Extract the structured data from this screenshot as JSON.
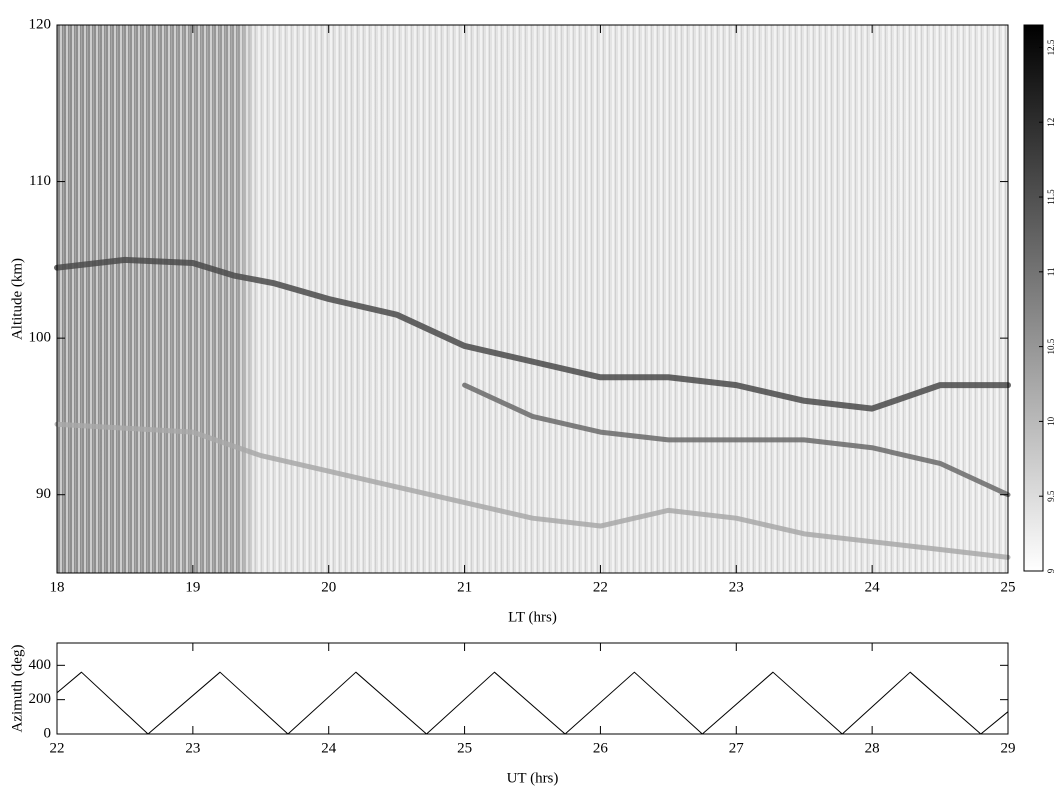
{
  "chart_data": [
    {
      "type": "line",
      "xlabel": "LT (hrs)",
      "ylabel": "Altitude (km)",
      "xlim": [
        18,
        25
      ],
      "ylim": [
        85,
        120
      ],
      "xticks": [
        18,
        19,
        20,
        21,
        22,
        23,
        24,
        25
      ],
      "yticks": [
        90,
        100,
        110,
        120
      ],
      "series": [
        {
          "color": "#4a4a4a",
          "x": [
            18,
            18.5,
            19,
            19.3,
            19.6,
            20,
            20.5,
            21,
            21.5,
            22,
            22.5,
            23,
            23.5,
            24,
            24.5,
            25
          ],
          "values": [
            104.5,
            105,
            104.8,
            104,
            103.5,
            102.5,
            101.5,
            99.5,
            98.5,
            97.5,
            97.5,
            97,
            96,
            95.5,
            97,
            97
          ]
        },
        {
          "color": "#6a6a6a",
          "x": [
            21,
            21.5,
            22,
            22.5,
            23,
            23.5,
            24,
            24.5,
            25
          ],
          "values": [
            97,
            95,
            94,
            93.5,
            93.5,
            93.5,
            93,
            92,
            90
          ]
        },
        {
          "color": "#a8a8a8",
          "x": [
            18,
            19,
            19.5,
            20,
            20.5,
            21,
            21.5,
            22,
            22.5,
            23,
            23.5,
            24,
            24.5,
            25
          ],
          "values": [
            94.5,
            94,
            92.5,
            91.5,
            90.5,
            89.5,
            88.5,
            88,
            89,
            88.5,
            87.5,
            87,
            86.5,
            86
          ]
        }
      ],
      "colorbar": {
        "lim": [
          9,
          12.65
        ],
        "ticks": [
          9,
          9.5,
          10,
          10.5,
          11,
          11.5,
          12,
          12.5
        ]
      }
    },
    {
      "type": "line",
      "xlabel": "UT (hrs)",
      "ylabel": "Azimuth (deg)",
      "xlim": [
        22,
        29
      ],
      "ylim": [
        0,
        530
      ],
      "xticks": [
        22,
        23,
        24,
        25,
        26,
        27,
        28,
        29
      ],
      "yticks": [
        0,
        200,
        400
      ],
      "series": [
        {
          "color": "#000000",
          "x": [
            22,
            22.18,
            22.67,
            23.2,
            23.7,
            24.2,
            24.72,
            25.22,
            25.74,
            26.25,
            26.75,
            27.27,
            27.78,
            28.28,
            28.8,
            29
          ],
          "values": [
            240,
            360,
            0,
            360,
            0,
            360,
            0,
            360,
            0,
            360,
            0,
            360,
            0,
            360,
            0,
            130
          ]
        }
      ]
    }
  ]
}
